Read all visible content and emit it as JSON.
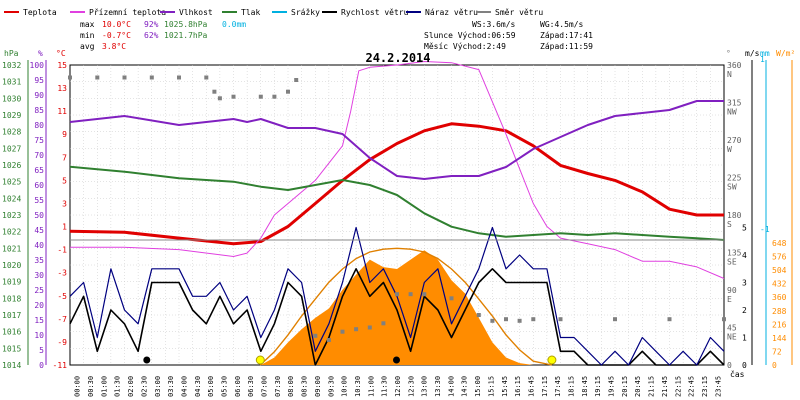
{
  "title": "24.2.2014",
  "legend": [
    {
      "label": "Teplota",
      "color": "#e00000"
    },
    {
      "label": "Přízemní teplota",
      "color": "#e040e0"
    },
    {
      "label": "Vlhkost",
      "color": "#8020c0"
    },
    {
      "label": "Tlak",
      "color": "#308030"
    },
    {
      "label": "Srážky",
      "color": "#00b0e0"
    },
    {
      "label": "Rychlost větru",
      "color": "#000000"
    },
    {
      "label": "Náraz větru",
      "color": "#000080"
    },
    {
      "label": "Směr větru",
      "color": "#808080"
    }
  ],
  "stats": {
    "max_label": "max",
    "min_label": "min",
    "avg_label": "avg",
    "max_temp": "10.0°C",
    "max_hum": "92%",
    "max_press": "1025.8hPa",
    "rain": "0.0mm",
    "min_temp": "-0.7°C",
    "min_hum": "62%",
    "min_press": "1021.7hPa",
    "avg_temp": "3.8°C"
  },
  "info": {
    "ws": "WS:3.6m/s",
    "wg": "WG:4.5m/s",
    "sun_rise": "Slunce Východ:06:59",
    "sun_set": "Západ:17:41",
    "moon_rise": "Měsíc  Východ:2:49",
    "moon_set": "Západ:11:59"
  },
  "axis_units": {
    "hpa": "hPa",
    "pct": "%",
    "degc": "°C",
    "deg": "°",
    "ms": "m/s",
    "mm": "mm",
    "wm2": "W/m²",
    "x_label": "čas"
  },
  "colors": {
    "temp": "#e00000",
    "ground": "#e040e0",
    "hum": "#8020c0",
    "press": "#308030",
    "rain": "#00b0e0",
    "wind": "#000000",
    "gust": "#000080",
    "dir": "#808080",
    "solar": "#ff8c00",
    "solar_curve": "#e08000",
    "grid": "#c8c8c8"
  },
  "chart_data": {
    "type": "line",
    "x_ticks": [
      "00:00",
      "00:30",
      "01:00",
      "01:30",
      "02:00",
      "02:30",
      "03:00",
      "03:30",
      "04:00",
      "04:30",
      "05:00",
      "05:30",
      "06:00",
      "06:30",
      "07:00",
      "07:30",
      "08:00",
      "08:30",
      "09:00",
      "09:30",
      "10:00",
      "10:30",
      "11:00",
      "11:30",
      "12:00",
      "12:30",
      "13:00",
      "13:30",
      "14:00",
      "14:30",
      "15:00",
      "15:15",
      "15:45",
      "16:15",
      "16:45",
      "17:15",
      "17:45",
      "18:15",
      "18:45",
      "19:15",
      "19:45",
      "20:15",
      "20:45",
      "21:15",
      "21:45",
      "22:15",
      "22:45",
      "23:15",
      "23:45"
    ],
    "y_axes": {
      "pressure_hpa": {
        "range": [
          1014,
          1032
        ],
        "ticks": [
          1014,
          1015,
          1016,
          1017,
          1018,
          1019,
          1020,
          1021,
          1022,
          1023,
          1024,
          1025,
          1026,
          1027,
          1028,
          1029,
          1030,
          1031,
          1032
        ]
      },
      "humidity_pct": {
        "range": [
          0,
          100
        ],
        "ticks": [
          0,
          5,
          10,
          15,
          20,
          25,
          30,
          35,
          40,
          45,
          50,
          55,
          60,
          65,
          70,
          75,
          80,
          85,
          90,
          95,
          100
        ]
      },
      "temp_c": {
        "range": [
          -11,
          15
        ],
        "ticks": [
          -11,
          -9,
          -7,
          -5,
          -3,
          -1,
          1,
          3,
          5,
          7,
          9,
          11,
          13,
          15
        ]
      },
      "wind_dir_deg": {
        "range": [
          0,
          360
        ],
        "ticks": [
          0,
          45,
          90,
          135,
          180,
          225,
          270,
          315,
          360
        ],
        "labels": [
          "",
          "NE",
          "E",
          "SE",
          "S",
          "SW",
          "W",
          "NW",
          "N"
        ]
      },
      "wind_ms": {
        "ticks": [
          0,
          1,
          2,
          3,
          4,
          5
        ]
      },
      "rain_mm": {
        "ticks": [
          -1,
          1
        ]
      },
      "solar_wm2": {
        "ticks": [
          0,
          72,
          144,
          216,
          288,
          360,
          432,
          504,
          576,
          648
        ]
      }
    },
    "series": [
      {
        "name": "Teplota",
        "unit": "°C",
        "t": [
          0,
          2,
          4,
          6,
          7,
          8,
          9,
          10,
          11,
          12,
          13,
          14,
          15,
          16,
          17,
          18,
          19,
          20,
          21,
          22,
          23,
          24
        ],
        "v": [
          0.6,
          0.5,
          0,
          -0.5,
          -0.3,
          1.0,
          3.0,
          5.0,
          6.8,
          8.2,
          9.3,
          9.9,
          9.7,
          9.3,
          8.0,
          6.3,
          5.6,
          5.0,
          4.0,
          2.5,
          2.0,
          2.0
        ]
      },
      {
        "name": "Přízemní teplota",
        "unit": "°C",
        "t": [
          0,
          2,
          4,
          6,
          6.5,
          7,
          7.5,
          8,
          9,
          10,
          10.3,
          10.6,
          11,
          12,
          13,
          14,
          15,
          16,
          16.5,
          17,
          17.5,
          18,
          19,
          20,
          21,
          22,
          23,
          24
        ],
        "v": [
          -0.8,
          -0.8,
          -1,
          -1.6,
          -1.3,
          0,
          2.0,
          3.0,
          5.0,
          8.0,
          11,
          14.5,
          14.8,
          15,
          15.3,
          15.2,
          14.6,
          9.0,
          6.0,
          3.0,
          1.0,
          0,
          -0.5,
          -1.0,
          -2.0,
          -2.0,
          -2.5,
          -3.5
        ]
      },
      {
        "name": "Vlhkost",
        "unit": "%",
        "t": [
          0,
          2,
          4,
          6,
          6.5,
          7,
          8,
          9,
          10,
          11,
          12,
          13,
          14,
          15,
          16,
          17,
          18,
          19,
          20,
          21,
          22,
          23,
          24
        ],
        "v": [
          81,
          83,
          80,
          82,
          81,
          82,
          79,
          79,
          77,
          69,
          63,
          62,
          63,
          63,
          66,
          72,
          76,
          80,
          83,
          84,
          85,
          88,
          88
        ]
      },
      {
        "name": "Tlak",
        "unit": "hPa",
        "t": [
          0,
          2,
          4,
          6,
          7,
          8,
          9,
          10,
          11,
          12,
          13,
          14,
          15,
          16,
          17,
          18,
          19,
          20,
          21,
          22,
          23,
          24
        ],
        "v": [
          1025.9,
          1025.6,
          1025.2,
          1025.0,
          1024.7,
          1024.5,
          1024.8,
          1025.1,
          1024.8,
          1024.2,
          1023.1,
          1022.3,
          1021.9,
          1021.7,
          1021.8,
          1021.9,
          1021.8,
          1021.9,
          1021.8,
          1021.7,
          1021.6,
          1021.5
        ]
      },
      {
        "name": "Rychlost větru",
        "unit": "m/s",
        "t": [
          0,
          0.5,
          1,
          1.5,
          2,
          2.5,
          3,
          3.5,
          4,
          4.5,
          5,
          5.5,
          6,
          6.5,
          7,
          7.5,
          8,
          8.5,
          9,
          9.5,
          10,
          10.5,
          11,
          11.5,
          12,
          12.5,
          13,
          13.5,
          14,
          14.5,
          15,
          15.5,
          16,
          16.5,
          17,
          17.5,
          18,
          18.5,
          19,
          19.5,
          20,
          20.5,
          21,
          21.5,
          22,
          22.5,
          23,
          23.5,
          24
        ],
        "v": [
          1.5,
          2.5,
          0.5,
          2.0,
          1.5,
          0.5,
          3.0,
          3.0,
          3.0,
          2.0,
          1.5,
          2.5,
          1.5,
          2.0,
          0.5,
          1.5,
          3.0,
          2.5,
          0,
          1.0,
          2.5,
          3.5,
          2.5,
          3.0,
          2.0,
          0.5,
          2.5,
          2.0,
          1.0,
          2.0,
          3.0,
          3.5,
          3.0,
          3.0,
          3.0,
          3.0,
          0.5,
          0.5,
          0,
          0,
          0,
          0,
          0.5,
          0,
          0,
          0,
          0,
          0.5,
          0
        ]
      },
      {
        "name": "Náraz větru",
        "unit": "m/s",
        "t": [
          0,
          0.5,
          1,
          1.5,
          2,
          2.5,
          3,
          3.5,
          4,
          4.5,
          5,
          5.5,
          6,
          6.5,
          7,
          7.5,
          8,
          8.5,
          9,
          9.5,
          10,
          10.5,
          11,
          11.5,
          12,
          12.5,
          13,
          13.5,
          14,
          14.5,
          15,
          15.5,
          16,
          16.5,
          17,
          17.5,
          18,
          18.5,
          19,
          19.5,
          20,
          20.5,
          21,
          21.5,
          22,
          22.5,
          23,
          23.5,
          24
        ],
        "v": [
          2.5,
          3.0,
          1.0,
          3.5,
          2.0,
          1.5,
          3.5,
          3.5,
          3.5,
          2.5,
          2.5,
          3.0,
          2.0,
          2.5,
          1.0,
          2.0,
          3.5,
          3.0,
          0.5,
          1.5,
          3.0,
          5.0,
          3.0,
          3.5,
          2.5,
          1.0,
          3.0,
          3.5,
          1.5,
          2.5,
          3.5,
          5.0,
          3.5,
          4.0,
          3.5,
          3.5,
          1.0,
          1.0,
          0.5,
          0,
          0.5,
          0,
          1.0,
          0.5,
          0,
          0.5,
          0,
          1.0,
          0.5
        ]
      },
      {
        "name": "Směr větru",
        "unit": "°",
        "t": [
          0,
          1,
          2,
          3,
          4,
          5,
          5.3,
          5.5,
          6,
          7,
          7.5,
          8,
          8.3,
          9,
          9.5,
          10,
          10.5,
          11,
          11.5,
          12,
          12.5,
          13,
          14,
          15,
          15.5,
          16,
          16.5,
          17,
          18,
          20,
          22,
          24
        ],
        "v": [
          345,
          345,
          345,
          345,
          345,
          345,
          328,
          320,
          322,
          322,
          322,
          328,
          342,
          35,
          30,
          40,
          43,
          45,
          50,
          85,
          85,
          85,
          80,
          60,
          53,
          55,
          53,
          55,
          55,
          55,
          55,
          55
        ]
      },
      {
        "name": "Solar",
        "unit": "W/m²",
        "t": [
          7.0,
          7.5,
          8,
          8.5,
          9,
          9.5,
          10,
          10.5,
          11,
          11.5,
          12,
          12.5,
          13,
          13.5,
          14,
          14.5,
          15,
          15.5,
          16,
          16.5,
          17,
          17.5
        ],
        "v": [
          0,
          40,
          120,
          190,
          250,
          300,
          400,
          480,
          560,
          520,
          510,
          560,
          610,
          560,
          450,
          380,
          250,
          120,
          40,
          10,
          0,
          0
        ]
      },
      {
        "name": "Solar theoretical",
        "unit": "W/m²",
        "t": [
          6.98,
          7.5,
          8,
          8.5,
          9,
          9.5,
          10,
          10.5,
          11,
          11.5,
          12,
          12.5,
          13,
          13.5,
          14,
          14.5,
          15,
          15.5,
          16,
          16.5,
          17,
          17.68
        ],
        "v": [
          0,
          70,
          160,
          260,
          350,
          440,
          510,
          565,
          600,
          615,
          620,
          615,
          600,
          565,
          510,
          440,
          350,
          260,
          160,
          80,
          20,
          0
        ]
      }
    ],
    "markers": [
      {
        "type": "moon",
        "time": "02:49"
      },
      {
        "type": "sun",
        "time": "06:59"
      },
      {
        "type": "moon",
        "time": "11:59"
      },
      {
        "type": "sun",
        "time": "17:41"
      }
    ],
    "grid": true
  }
}
